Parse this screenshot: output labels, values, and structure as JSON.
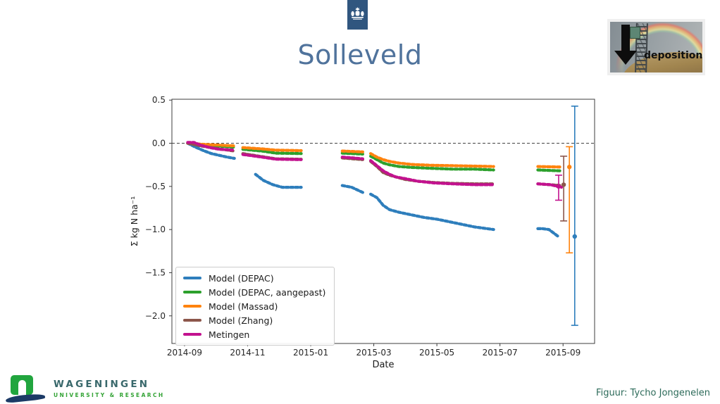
{
  "slide": {
    "title": "Solleveld",
    "credit": "Figuur: Tycho Jongenelen"
  },
  "deposition_figure": {
    "label": "deposition"
  },
  "wageningen": {
    "line1": "WAGENINGEN",
    "line2": "UNIVERSITY & RESEARCH",
    "mark_green": "#21a53e",
    "mark_navy": "#1c3a66"
  },
  "rijkslogo_color": "#30567f",
  "chart_data": {
    "type": "scatter",
    "title": "",
    "xlabel": "Date",
    "ylabel": "Σ kg N ha⁻¹",
    "x_unit": "months since 2014-09-01",
    "xlim": [
      -0.4,
      13.0
    ],
    "ylim": [
      -2.32,
      0.51
    ],
    "grid": false,
    "zero_line": true,
    "legend_position": "lower left",
    "xticks": [
      {
        "m": 0,
        "label": "2014-09"
      },
      {
        "m": 2,
        "label": "2014-11"
      },
      {
        "m": 4,
        "label": "2015-01"
      },
      {
        "m": 6,
        "label": "2015-03"
      },
      {
        "m": 8,
        "label": "2015-05"
      },
      {
        "m": 10,
        "label": "2015-07"
      },
      {
        "m": 12,
        "label": "2015-09"
      }
    ],
    "yticks": [
      {
        "v": 0.5,
        "label": "0.5"
      },
      {
        "v": 0.0,
        "label": "0.0"
      },
      {
        "v": -0.5,
        "label": "−0.5"
      },
      {
        "v": -1.0,
        "label": "−1.0"
      },
      {
        "v": -1.5,
        "label": "−1.5"
      },
      {
        "v": -2.0,
        "label": "−2.0"
      }
    ],
    "series": [
      {
        "name": "Model (DEPAC)",
        "color": "#2e7ebc",
        "segments": [
          [
            [
              0.1,
              0
            ],
            [
              0.35,
              -0.045
            ],
            [
              0.6,
              -0.085
            ],
            [
              0.85,
              -0.12
            ],
            [
              1.1,
              -0.14
            ],
            [
              1.35,
              -0.16
            ],
            [
              1.58,
              -0.175
            ]
          ],
          [
            [
              2.25,
              -0.36
            ],
            [
              2.5,
              -0.43
            ],
            [
              2.8,
              -0.48
            ],
            [
              3.1,
              -0.51
            ],
            [
              3.7,
              -0.51
            ]
          ],
          [
            [
              5.0,
              -0.49
            ],
            [
              5.3,
              -0.51
            ],
            [
              5.65,
              -0.57
            ]
          ],
          [
            [
              5.9,
              -0.59
            ],
            [
              6.1,
              -0.63
            ],
            [
              6.3,
              -0.72
            ],
            [
              6.5,
              -0.77
            ],
            [
              6.8,
              -0.8
            ],
            [
              7.2,
              -0.83
            ],
            [
              7.6,
              -0.86
            ],
            [
              8.0,
              -0.88
            ],
            [
              8.4,
              -0.91
            ],
            [
              8.8,
              -0.94
            ],
            [
              9.2,
              -0.97
            ],
            [
              9.6,
              -0.99
            ],
            [
              9.8,
              -1.0
            ]
          ],
          [
            [
              11.2,
              -0.99
            ],
            [
              11.35,
              -0.99
            ],
            [
              11.55,
              -1.0
            ],
            [
              11.85,
              -1.08
            ]
          ]
        ],
        "errorbar": {
          "x": 12.37,
          "y": -1.08,
          "lo": -2.11,
          "hi": 0.43
        }
      },
      {
        "name": "Model (DEPAC, aangepast)",
        "color": "#2ca02c",
        "segments": [
          [
            [
              0.1,
              0
            ],
            [
              0.5,
              -0.015
            ],
            [
              1.0,
              -0.03
            ],
            [
              1.58,
              -0.045
            ]
          ],
          [
            [
              1.85,
              -0.07
            ],
            [
              2.45,
              -0.09
            ],
            [
              2.9,
              -0.115
            ],
            [
              3.7,
              -0.12
            ]
          ],
          [
            [
              5.0,
              -0.115
            ],
            [
              5.65,
              -0.125
            ]
          ],
          [
            [
              5.9,
              -0.15
            ],
            [
              6.1,
              -0.19
            ],
            [
              6.3,
              -0.23
            ],
            [
              6.5,
              -0.25
            ],
            [
              6.8,
              -0.27
            ],
            [
              7.2,
              -0.28
            ],
            [
              7.8,
              -0.29
            ],
            [
              8.5,
              -0.3
            ],
            [
              9.2,
              -0.3
            ],
            [
              9.8,
              -0.31
            ]
          ],
          [
            [
              11.2,
              -0.31
            ],
            [
              11.95,
              -0.32
            ]
          ]
        ],
        "errorbar": null
      },
      {
        "name": "Model (Massad)",
        "color": "#ff830e",
        "segments": [
          [
            [
              0.1,
              0
            ],
            [
              0.5,
              -0.01
            ],
            [
              1.0,
              -0.02
            ],
            [
              1.58,
              -0.03
            ]
          ],
          [
            [
              1.85,
              -0.05
            ],
            [
              2.45,
              -0.065
            ],
            [
              2.9,
              -0.08
            ],
            [
              3.7,
              -0.085
            ]
          ],
          [
            [
              5.0,
              -0.09
            ],
            [
              5.65,
              -0.1
            ]
          ],
          [
            [
              5.9,
              -0.12
            ],
            [
              6.1,
              -0.16
            ],
            [
              6.3,
              -0.19
            ],
            [
              6.5,
              -0.21
            ],
            [
              6.8,
              -0.23
            ],
            [
              7.2,
              -0.245
            ],
            [
              7.8,
              -0.255
            ],
            [
              8.5,
              -0.26
            ],
            [
              9.2,
              -0.265
            ],
            [
              9.8,
              -0.27
            ]
          ],
          [
            [
              11.2,
              -0.27
            ],
            [
              11.95,
              -0.275
            ]
          ]
        ],
        "errorbar": {
          "x": 12.2,
          "y": -0.275,
          "lo": -1.27,
          "hi": -0.04
        }
      },
      {
        "name": "Model (Zhang)",
        "color": "#8c564b",
        "segments": [
          [
            [
              0.1,
              0
            ],
            [
              0.5,
              -0.03
            ],
            [
              1.0,
              -0.06
            ],
            [
              1.58,
              -0.09
            ]
          ],
          [
            [
              1.85,
              -0.12
            ],
            [
              2.45,
              -0.155
            ],
            [
              2.9,
              -0.18
            ],
            [
              3.7,
              -0.185
            ]
          ],
          [
            [
              5.0,
              -0.17
            ],
            [
              5.65,
              -0.19
            ]
          ],
          [
            [
              5.9,
              -0.21
            ],
            [
              6.1,
              -0.27
            ],
            [
              6.3,
              -0.34
            ],
            [
              6.5,
              -0.37
            ],
            [
              6.7,
              -0.39
            ],
            [
              7.0,
              -0.42
            ],
            [
              7.4,
              -0.44
            ],
            [
              7.9,
              -0.455
            ],
            [
              8.5,
              -0.465
            ],
            [
              9.2,
              -0.47
            ],
            [
              9.8,
              -0.47
            ]
          ],
          [
            [
              11.2,
              -0.47
            ],
            [
              11.95,
              -0.49
            ]
          ]
        ],
        "errorbar": {
          "x": 12.02,
          "y": -0.48,
          "lo": -0.9,
          "hi": -0.15
        }
      },
      {
        "name": "Metingen",
        "color": "#c2128e",
        "segments": [
          [
            [
              0.1,
              0.01
            ],
            [
              0.3,
              0.01
            ],
            [
              0.5,
              -0.02
            ],
            [
              0.8,
              -0.05
            ],
            [
              1.1,
              -0.07
            ],
            [
              1.58,
              -0.08
            ]
          ],
          [
            [
              1.85,
              -0.13
            ],
            [
              2.45,
              -0.16
            ],
            [
              2.9,
              -0.185
            ],
            [
              3.7,
              -0.19
            ]
          ],
          [
            [
              5.0,
              -0.16
            ],
            [
              5.35,
              -0.17
            ],
            [
              5.65,
              -0.18
            ]
          ],
          [
            [
              5.9,
              -0.2
            ],
            [
              6.1,
              -0.26
            ],
            [
              6.3,
              -0.32
            ],
            [
              6.5,
              -0.36
            ],
            [
              6.7,
              -0.39
            ],
            [
              7.0,
              -0.41
            ],
            [
              7.4,
              -0.44
            ],
            [
              7.9,
              -0.46
            ],
            [
              8.5,
              -0.47
            ],
            [
              9.2,
              -0.48
            ],
            [
              9.8,
              -0.48
            ]
          ],
          [
            [
              11.2,
              -0.47
            ],
            [
              11.6,
              -0.48
            ],
            [
              11.95,
              -0.51
            ]
          ]
        ],
        "errorbar": {
          "x": 11.86,
          "y": -0.5,
          "lo": -0.66,
          "hi": -0.37
        }
      }
    ]
  }
}
